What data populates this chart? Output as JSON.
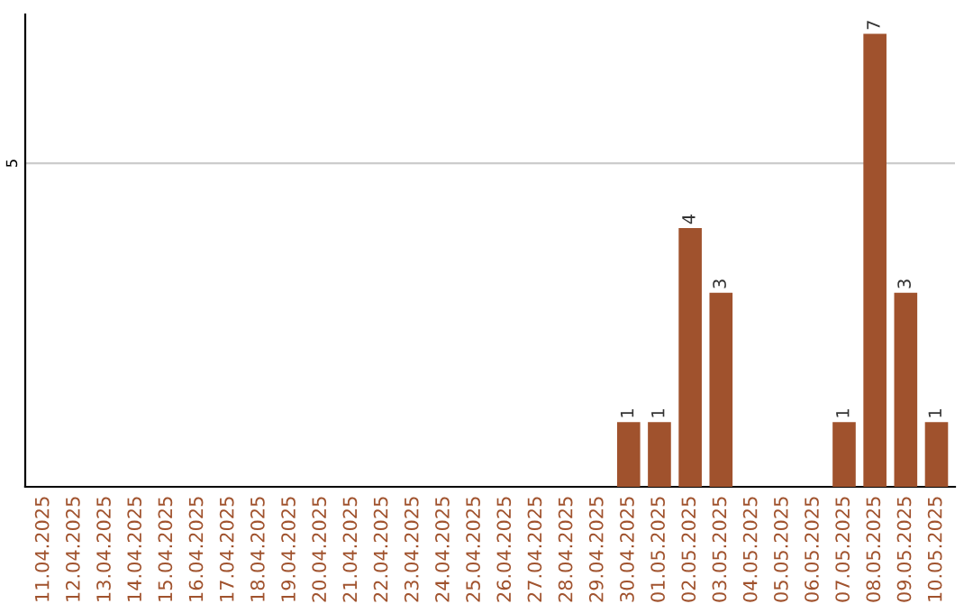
{
  "chart_data": {
    "type": "bar",
    "categories": [
      "11.04.2025",
      "12.04.2025",
      "13.04.2025",
      "14.04.2025",
      "15.04.2025",
      "16.04.2025",
      "17.04.2025",
      "18.04.2025",
      "19.04.2025",
      "20.04.2025",
      "21.04.2025",
      "22.04.2025",
      "23.04.2025",
      "24.04.2025",
      "25.04.2025",
      "26.04.2025",
      "27.04.2025",
      "28.04.2025",
      "29.04.2025",
      "30.04.2025",
      "01.05.2025",
      "02.05.2025",
      "03.05.2025",
      "04.05.2025",
      "05.05.2025",
      "06.05.2025",
      "07.05.2025",
      "08.05.2025",
      "09.05.2025",
      "10.05.2025"
    ],
    "values": [
      null,
      null,
      null,
      null,
      null,
      null,
      null,
      null,
      null,
      null,
      null,
      null,
      null,
      null,
      null,
      null,
      null,
      null,
      null,
      1,
      1,
      4,
      3,
      null,
      null,
      null,
      1,
      7,
      3,
      1
    ],
    "data_labels": true,
    "color": "#a0522d",
    "ylim": [
      0,
      7.3
    ],
    "yticks": [
      5
    ],
    "grid": "y"
  }
}
